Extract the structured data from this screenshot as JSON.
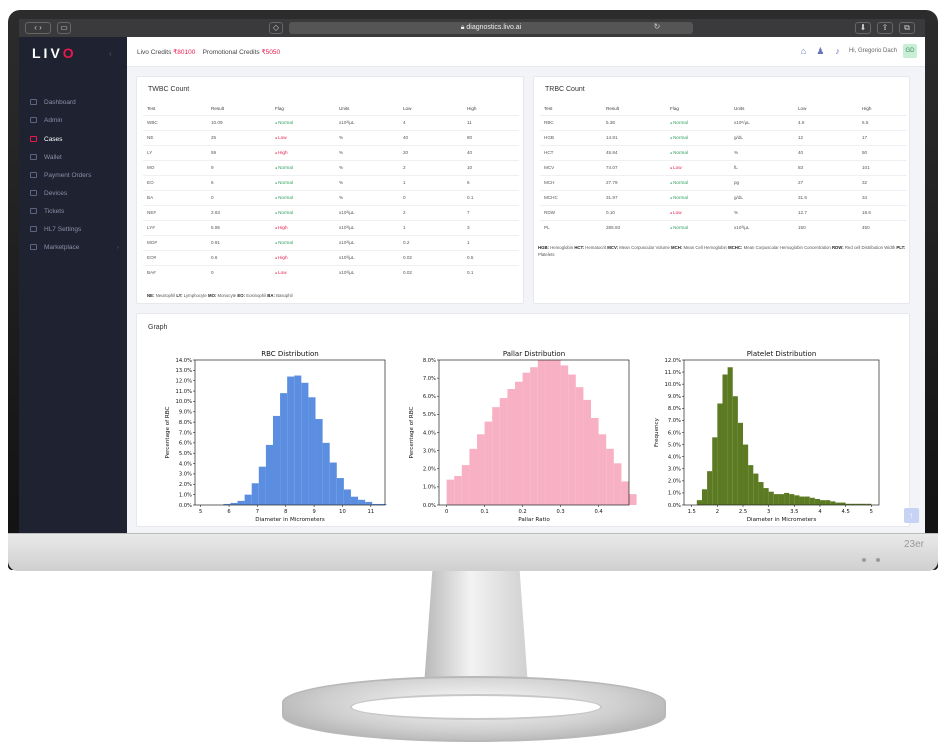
{
  "browser": {
    "url": "diagnostics.livo.ai"
  },
  "brand": {
    "logo": "LIVO",
    "monitor_label": "23er"
  },
  "header": {
    "credits_label": "Livo Credits",
    "credits_value": "₹80100",
    "promo_label": "Promotional Credits",
    "promo_value": "₹5050",
    "greeting": "Hi, Gregorio Dach",
    "avatar": "GD"
  },
  "sidebar": {
    "items": [
      {
        "label": "Dashboard",
        "icon": "dashboard-icon"
      },
      {
        "label": "Admin",
        "icon": "users-icon"
      },
      {
        "label": "Cases",
        "icon": "folder-icon",
        "active": true
      },
      {
        "label": "Wallet",
        "icon": "wallet-icon"
      },
      {
        "label": "Payment Orders",
        "icon": "card-icon"
      },
      {
        "label": "Devices",
        "icon": "device-icon"
      },
      {
        "label": "Tickets",
        "icon": "ticket-icon"
      },
      {
        "label": "HL7 Settings",
        "icon": "settings-icon"
      },
      {
        "label": "Marketplace",
        "icon": "store-icon",
        "chevron": true
      }
    ]
  },
  "twbc": {
    "title": "TWBC Count",
    "columns": [
      "Test",
      "Result",
      "Flag",
      "Units",
      "Low",
      "High"
    ],
    "rows": [
      [
        "WBC",
        "10.09",
        "Normal",
        "x10³/µL",
        "4",
        "11"
      ],
      [
        "NE",
        "25",
        "Low",
        "%",
        "40",
        "80"
      ],
      [
        "LY",
        "59",
        "High",
        "%",
        "20",
        "40"
      ],
      [
        "MO",
        "9",
        "Normal",
        "%",
        "2",
        "10"
      ],
      [
        "EO",
        "6",
        "Normal",
        "%",
        "1",
        "6"
      ],
      [
        "BA",
        "0",
        "Normal",
        "%",
        "0",
        "0.1"
      ],
      [
        "NE#",
        "2.63",
        "Normal",
        "x10³/µL",
        "2",
        "7"
      ],
      [
        "LY#",
        "5.95",
        "High",
        "x10³/µL",
        "1",
        "3"
      ],
      [
        "MO#",
        "0.91",
        "Normal",
        "x10³/µL",
        "0.2",
        "1"
      ],
      [
        "EO#",
        "0.6",
        "High",
        "x10³/µL",
        "0.02",
        "0.5"
      ],
      [
        "BA#",
        "0",
        "Low",
        "x10³/µL",
        "0.02",
        "0.1"
      ]
    ],
    "legend": [
      [
        "NE:",
        "Neutrophil"
      ],
      [
        "LY:",
        "Lymphocyte"
      ],
      [
        "MO:",
        "Monocyte"
      ],
      [
        "EO:",
        "Eosinophil"
      ],
      [
        "BA:",
        "Basophil"
      ]
    ]
  },
  "trbc": {
    "title": "TRBC Count",
    "columns": [
      "Test",
      "Result",
      "Flag",
      "Units",
      "Low",
      "High"
    ],
    "rows": [
      [
        "RBC",
        "5.36",
        "Normal",
        "x10⁶/µL",
        "4.6",
        "6.5"
      ],
      [
        "HGB",
        "14.81",
        "Normal",
        "g/dL",
        "12",
        "17"
      ],
      [
        "HCT",
        "45.84",
        "Normal",
        "%",
        "40",
        "50"
      ],
      [
        "MCV",
        "74.07",
        "Low",
        "fL",
        "83",
        "101"
      ],
      [
        "MCH",
        "27.79",
        "Normal",
        "pg",
        "27",
        "32"
      ],
      [
        "MCHC",
        "31.97",
        "Normal",
        "g/dL",
        "31.5",
        "34"
      ],
      [
        "RDW",
        "0.10",
        "Low",
        "%",
        "12.7",
        "18.6"
      ],
      [
        "PL",
        "285.93",
        "Normal",
        "x10³/µL",
        "150",
        "450"
      ]
    ],
    "legend": [
      [
        "HGB:",
        "Hemoglobin"
      ],
      [
        "HCT:",
        "Hematocrit"
      ],
      [
        "MCV:",
        "Mean Corpuscular Volume"
      ],
      [
        "MCH:",
        "Mean Cell Hemoglobin"
      ],
      [
        "MCHC:",
        "Mean Corpuscular Hemoglobin Concentration"
      ],
      [
        "RDW:",
        "Red cell Distribution Width"
      ],
      [
        "PLT:",
        "Platelets"
      ]
    ]
  },
  "graph": {
    "title": "Graph"
  },
  "chart_data": [
    {
      "type": "bar",
      "title": "RBC Distribution",
      "xlabel": "Diameter in Micrometers",
      "ylabel": "Percentage of RBC",
      "color": "#5b8ee1",
      "x_start": 5.8,
      "bin_width": 0.25,
      "xlim": [
        4.8,
        11.5
      ],
      "ylim": [
        0,
        14
      ],
      "xticks": [
        5,
        6,
        7,
        8,
        9,
        10,
        11
      ],
      "yticks": [
        0,
        1,
        2,
        3,
        4,
        5,
        6,
        7,
        8,
        9,
        10,
        11,
        12,
        13,
        14
      ],
      "y_suffix": ".0%",
      "values": [
        0.1,
        0.2,
        0.4,
        1.0,
        2.1,
        3.7,
        5.8,
        8.6,
        10.8,
        12.4,
        12.5,
        11.8,
        10.4,
        8.3,
        6.0,
        4.1,
        2.6,
        1.5,
        0.8,
        0.5,
        0.3,
        0.1,
        0.1
      ]
    },
    {
      "type": "bar",
      "title": "Pallar Distribution",
      "xlabel": "Pallar Ratio",
      "ylabel": "Percentage of RBC",
      "color": "#f7b0c4",
      "x_start": 0.0,
      "bin_width": 0.02,
      "xlim": [
        -0.02,
        0.48
      ],
      "ylim": [
        0,
        8
      ],
      "xticks": [
        0.0,
        0.1,
        0.2,
        0.3,
        0.4
      ],
      "yticks": [
        0,
        1,
        2,
        3,
        4,
        5,
        6,
        7,
        8
      ],
      "y_suffix": ".0%",
      "values": [
        1.4,
        1.6,
        2.2,
        3.1,
        3.9,
        4.6,
        5.4,
        5.9,
        6.4,
        6.8,
        7.3,
        7.6,
        8.0,
        8.0,
        8.0,
        7.7,
        7.2,
        6.5,
        5.8,
        4.8,
        3.9,
        3.1,
        2.3,
        1.3,
        0.6
      ]
    },
    {
      "type": "bar",
      "title": "Platelet Distribution",
      "xlabel": "Diameter in Micrometers",
      "ylabel": "Frequency",
      "color": "#5c7a22",
      "x_start": 1.6,
      "bin_width": 0.1,
      "xlim": [
        1.35,
        5.15
      ],
      "ylim": [
        0,
        12
      ],
      "xticks": [
        1.5,
        2.0,
        2.5,
        3.0,
        3.5,
        4.0,
        4.5,
        5.0
      ],
      "yticks": [
        0,
        1,
        2,
        3,
        4,
        5,
        6,
        7,
        8,
        9,
        10,
        11,
        12
      ],
      "y_suffix": ".0%",
      "values": [
        0.4,
        1.3,
        2.8,
        5.6,
        8.4,
        10.8,
        11.4,
        9.0,
        6.8,
        5.0,
        3.3,
        2.6,
        1.9,
        1.4,
        1.1,
        0.9,
        0.9,
        1.0,
        0.9,
        0.8,
        0.7,
        0.7,
        0.6,
        0.5,
        0.4,
        0.4,
        0.3,
        0.2,
        0.2,
        0.1,
        0.1,
        0.1,
        0.1,
        0.1
      ]
    }
  ]
}
